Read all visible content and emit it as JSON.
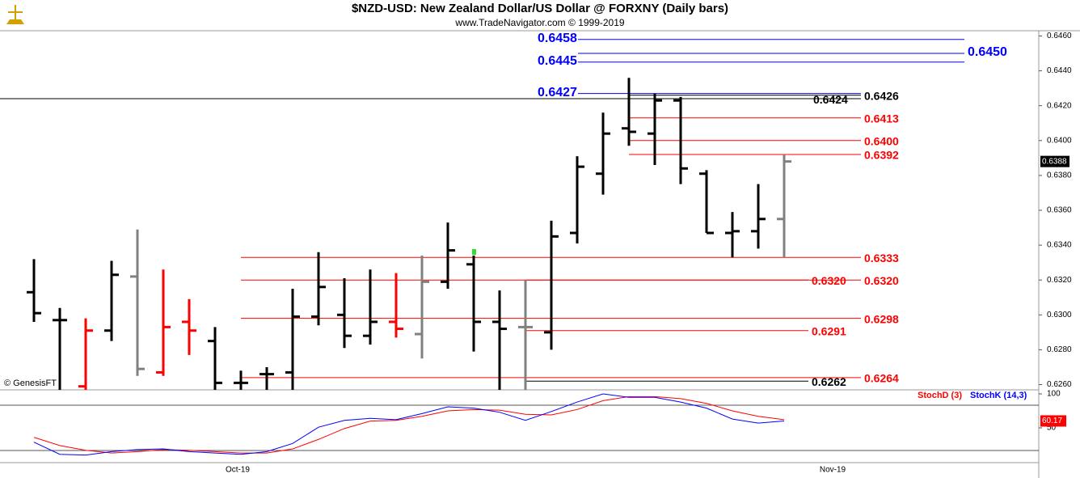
{
  "chart_data": {
    "type": "ohlc",
    "title": "$NZD-USD:  New Zealand Dollar/US Dollar @ FORXNY  (Daily bars)",
    "subtitle": "www.TradeNavigator.com © 1999-2019",
    "source": "© GenesisFT",
    "categories": [
      null,
      null,
      null,
      null,
      null,
      null,
      null,
      null,
      "Oct-19",
      null,
      null,
      null,
      null,
      null,
      null,
      null,
      null,
      null,
      null,
      null,
      null,
      null,
      null,
      null,
      null,
      null,
      null,
      null,
      null,
      null,
      null,
      "Nov-19"
    ],
    "open": [
      0.6313,
      0.6297,
      0.6259,
      0.6291,
      0.6322,
      0.6267,
      0.6296,
      0.6285,
      0.6261,
      0.6266,
      0.6267,
      0.6299,
      0.63,
      0.6288,
      0.6296,
      0.6289,
      0.6319,
      0.6329,
      0.6296,
      0.6293,
      0.629,
      0.6347,
      0.6381,
      0.6407,
      0.6404,
      0.6423,
      0.6381,
      0.6347,
      0.6348,
      0.6355,
      null,
      null
    ],
    "high": [
      0.6332,
      0.6304,
      0.6298,
      0.6331,
      0.6349,
      0.6326,
      0.6309,
      0.6293,
      0.6268,
      0.627,
      0.6315,
      0.6336,
      0.6321,
      0.6326,
      0.6324,
      0.6334,
      0.6353,
      0.6334,
      0.6314,
      0.632,
      0.6354,
      0.6391,
      0.6416,
      0.6436,
      0.6427,
      0.6425,
      0.6383,
      0.6359,
      0.6375,
      0.6392,
      null,
      null
    ],
    "low": [
      0.6296,
      0.625,
      0.625,
      0.6285,
      0.6265,
      0.6265,
      0.6277,
      0.625,
      0.625,
      0.625,
      0.625,
      0.6294,
      0.6281,
      0.6283,
      0.6287,
      0.6275,
      0.6315,
      0.6279,
      0.625,
      0.625,
      0.628,
      0.6341,
      0.6369,
      0.6397,
      0.6386,
      0.6375,
      0.6347,
      0.6333,
      0.6338,
      0.6333,
      null,
      null
    ],
    "close": [
      0.6301,
      0.6297,
      0.6291,
      0.6323,
      0.6269,
      0.6293,
      0.6291,
      0.6261,
      0.6261,
      0.6266,
      0.6299,
      0.6316,
      0.6288,
      0.6296,
      0.6292,
      0.6319,
      0.6337,
      0.6296,
      0.6292,
      0.6293,
      0.6345,
      0.6385,
      0.6404,
      0.6405,
      0.6423,
      0.6384,
      0.6347,
      0.6348,
      0.6355,
      0.6388,
      null,
      null
    ],
    "bar_colors": [
      "#000000",
      "#000000",
      "#ff0000",
      "#000000",
      "#808080",
      "#ff0000",
      "#ff0000",
      "#000000",
      "#000000",
      "#000000",
      "#000000",
      "#000000",
      "#000000",
      "#000000",
      "#ff0000",
      "#808080",
      "#000000",
      "#000000",
      "#000000",
      "#808080",
      "#000000",
      "#000000",
      "#000000",
      "#000000",
      "#000000",
      "#000000",
      "#000000",
      "#000000",
      "#000000",
      "#808080",
      null,
      null
    ],
    "ylim": [
      0.6257,
      0.6463
    ],
    "yticks": [
      {
        "value": 0.626,
        "label": "0.6260"
      },
      {
        "value": 0.628,
        "label": "0.6280"
      },
      {
        "value": 0.63,
        "label": "0.6300"
      },
      {
        "value": 0.632,
        "label": "0.6320"
      },
      {
        "value": 0.634,
        "label": "0.6340"
      },
      {
        "value": 0.636,
        "label": "0.6360"
      },
      {
        "value": 0.638,
        "label": "0.6380"
      },
      {
        "value": 0.64,
        "label": "0.6400"
      },
      {
        "value": 0.642,
        "label": "0.6420"
      },
      {
        "value": 0.644,
        "label": "0.6440"
      },
      {
        "value": 0.646,
        "label": "0.6460"
      }
    ],
    "last_price": {
      "value": 0.6388,
      "label": "0.6388"
    },
    "levels": [
      {
        "value": 0.6458,
        "label": "0.6458",
        "color": "#0000ff"
      },
      {
        "value": 0.645,
        "label": "0.6450",
        "color": "#0000ff"
      },
      {
        "value": 0.6445,
        "label": "0.6445",
        "color": "#0000ff"
      },
      {
        "value": 0.6427,
        "label": "0.6427",
        "color": "#0000ff"
      },
      {
        "value": 0.6426,
        "label": "0.6426",
        "color": "#000000"
      },
      {
        "value": 0.6424,
        "label": "0.6424",
        "color": "#000000"
      },
      {
        "value": 0.6413,
        "label": "0.6413",
        "color": "#ff0000"
      },
      {
        "value": 0.64,
        "label": "0.6400",
        "color": "#ff0000"
      },
      {
        "value": 0.6392,
        "label": "0.6392",
        "color": "#ff0000"
      },
      {
        "value": 0.6333,
        "label": "0.6333",
        "color": "#ff0000"
      },
      {
        "value": 0.632,
        "label": "0.6320",
        "color": "#ff0000"
      },
      {
        "value": 0.632,
        "label": "0.6320",
        "color": "#ff0000"
      },
      {
        "value": 0.6298,
        "label": "0.6298",
        "color": "#ff0000"
      },
      {
        "value": 0.6291,
        "label": "0.6291",
        "color": "#ff0000"
      },
      {
        "value": 0.6264,
        "label": "0.6264",
        "color": "#ff0000"
      },
      {
        "value": 0.6262,
        "label": "0.6262",
        "color": "#000000"
      }
    ],
    "stoch": {
      "ylim": [
        0,
        100
      ],
      "yticks": [
        100,
        50
      ],
      "last_value": 60.17,
      "series": [
        {
          "name": "StochD (3)",
          "color": "#ff0000",
          "values": [
            36,
            24,
            17,
            13,
            15,
            18,
            17,
            15,
            13,
            13,
            19,
            33,
            49,
            60,
            61,
            67,
            75,
            77,
            76,
            70,
            69,
            77,
            90,
            96,
            96,
            93,
            86,
            75,
            67,
            62,
            null,
            null
          ]
        },
        {
          "name": "StochK (14,3)",
          "color": "#0000ff",
          "values": [
            29,
            11,
            10,
            15,
            18,
            19,
            15,
            13,
            11,
            15,
            27,
            51,
            61,
            64,
            62,
            71,
            81,
            79,
            73,
            61,
            74,
            88,
            100,
            95,
            95,
            88,
            79,
            63,
            57,
            60.17,
            null,
            null
          ]
        }
      ]
    }
  }
}
